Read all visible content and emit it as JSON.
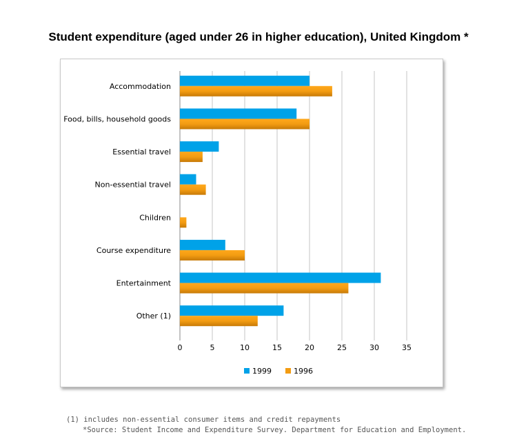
{
  "chart_data": {
    "type": "bar",
    "orientation": "horizontal",
    "title": "Student expenditure (aged under 26 in higher education), United Kingdom *",
    "categories": [
      "Accommodation",
      "Food, bills, household goods",
      "Essential travel",
      "Non-essential travel",
      "Children",
      "Course expenditure",
      "Entertainment",
      "Other (1)"
    ],
    "series": [
      {
        "name": "1999",
        "color": "#00a2e8",
        "values": [
          20,
          18,
          6,
          2.5,
          0,
          7,
          31,
          16
        ]
      },
      {
        "name": "1996",
        "color": "#f39c12",
        "values": [
          23.5,
          20,
          3.5,
          4,
          1,
          10,
          26,
          12
        ]
      }
    ],
    "xlim": [
      0,
      35
    ],
    "xticks": [
      "0",
      "5",
      "10",
      "15",
      "20",
      "25",
      "30",
      "35"
    ],
    "grid": true,
    "legend": "bottom"
  },
  "footnotes": {
    "note1": "(1) includes non-essential consumer items and credit repayments",
    "source": "*Source: Student Income and Expenditure Survey. Department for Education and Employment."
  }
}
